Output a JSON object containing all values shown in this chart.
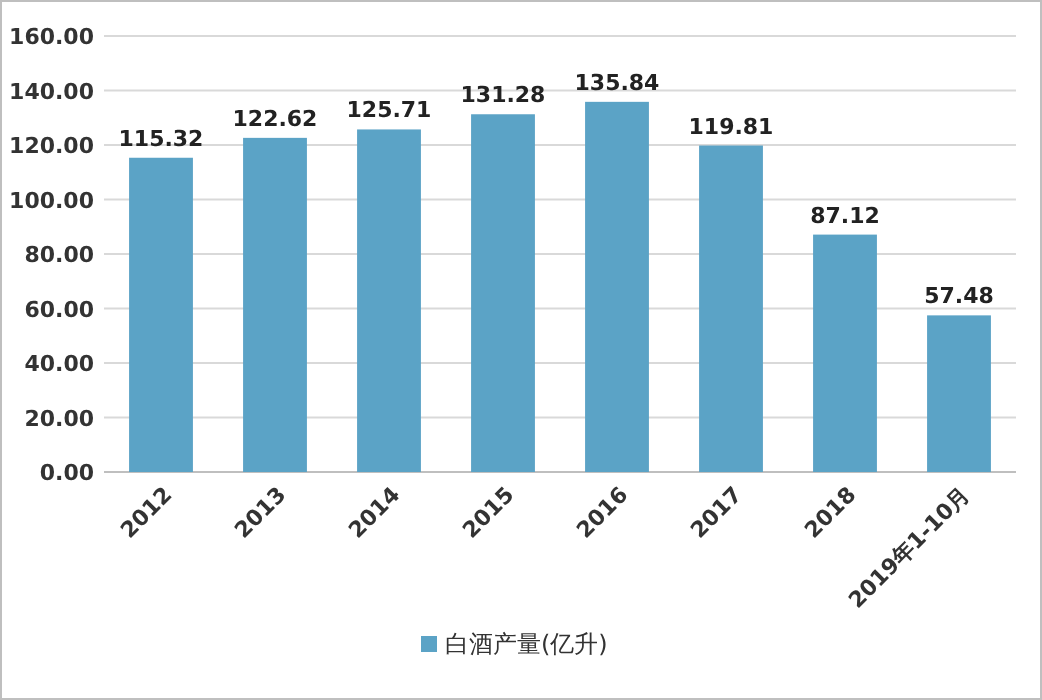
{
  "chart_data": {
    "type": "bar",
    "categories": [
      "2012",
      "2013",
      "2014",
      "2015",
      "2016",
      "2017",
      "2018",
      "2019年1-10月"
    ],
    "series": [
      {
        "name": "白酒产量(亿升)",
        "color": "#5ba3c6",
        "values": [
          115.32,
          122.62,
          125.71,
          131.28,
          135.84,
          119.81,
          87.12,
          57.48
        ]
      }
    ],
    "ylim": [
      0,
      160
    ],
    "yticks": [
      {
        "value": 0,
        "label": "0.00"
      },
      {
        "value": 20,
        "label": "20.00"
      },
      {
        "value": 40,
        "label": "40.00"
      },
      {
        "value": 60,
        "label": "60.00"
      },
      {
        "value": 80,
        "label": "80.00"
      },
      {
        "value": 100,
        "label": "100.00"
      },
      {
        "value": 120,
        "label": "120.00"
      },
      {
        "value": 140,
        "label": "140.00"
      },
      {
        "value": 160,
        "label": "160.00"
      }
    ],
    "data_labels": true,
    "grid": "y",
    "legend": "bottom"
  }
}
